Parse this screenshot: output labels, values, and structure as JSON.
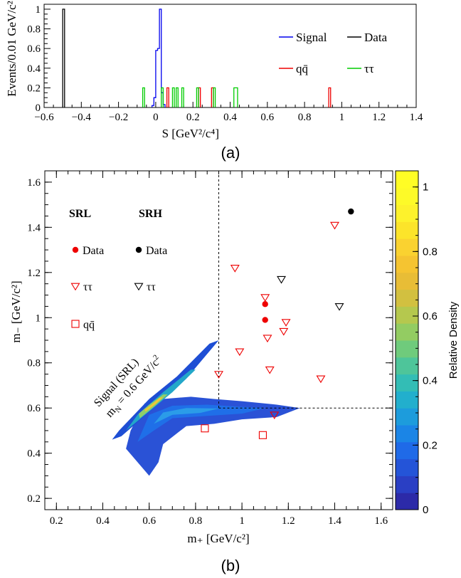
{
  "chart_data": [
    {
      "type": "histogram-step",
      "panel_label": "(a)",
      "xlabel": "S [GeV²/c⁴]",
      "ylabel": "Events/0.01 GeV/c²",
      "xlim": [
        -0.6,
        1.4
      ],
      "ylim": [
        0,
        1.05
      ],
      "x_ticks": [
        "−0.6",
        "−0.4",
        "−0.2",
        "0",
        "0.2",
        "0.4",
        "0.6",
        "0.8",
        "1",
        "1.2",
        "1.4"
      ],
      "y_ticks": [
        "0",
        "0.2",
        "0.4",
        "0.6",
        "0.8",
        "1"
      ],
      "bin_width": 0.01,
      "legend": [
        {
          "key": "signal",
          "label": "Signal",
          "color": "#0000ee"
        },
        {
          "key": "data",
          "label": "Data",
          "color": "#000000"
        },
        {
          "key": "qq",
          "label": "qq̄",
          "color": "#ee0000"
        },
        {
          "key": "tautau",
          "label": "ττ",
          "color": "#00cc00"
        }
      ],
      "series": [
        {
          "key": "signal",
          "color": "#0000ee",
          "bins": [
            [
              -0.02,
              0.02
            ],
            [
              -0.01,
              0.1
            ],
            [
              0.0,
              0.58
            ],
            [
              0.01,
              0.6
            ],
            [
              0.02,
              1.0
            ],
            [
              0.03,
              0.15
            ],
            [
              0.04,
              0.03
            ]
          ]
        },
        {
          "key": "data",
          "color": "#000000",
          "bins": [
            [
              -0.5,
              1.0
            ]
          ]
        },
        {
          "key": "qq",
          "color": "#ee0000",
          "bins": [
            [
              0.06,
              0.2
            ],
            [
              0.23,
              0.2
            ],
            [
              0.3,
              0.2
            ],
            [
              0.93,
              0.2
            ]
          ]
        },
        {
          "key": "tautau",
          "color": "#00cc00",
          "bins": [
            [
              -0.07,
              0.2
            ],
            [
              0.03,
              0.2
            ],
            [
              0.09,
              0.2
            ],
            [
              0.11,
              0.2
            ],
            [
              0.14,
              0.2
            ],
            [
              0.22,
              0.2
            ],
            [
              0.31,
              0.2
            ],
            [
              0.42,
              0.2
            ],
            [
              0.43,
              0.2
            ]
          ]
        }
      ]
    },
    {
      "type": "scatter-density",
      "panel_label": "(b)",
      "xlabel": "m₊ [GeV/c²]",
      "ylabel": "m₋ [GeV/c²]",
      "xlim": [
        0.15,
        1.65
      ],
      "ylim": [
        0.15,
        1.65
      ],
      "x_ticks": [
        "0.2",
        "0.4",
        "0.6",
        "0.8",
        "1",
        "1.2",
        "1.4",
        "1.6"
      ],
      "y_ticks": [
        "0.2",
        "0.4",
        "0.6",
        "0.8",
        "1",
        "1.2",
        "1.4",
        "1.6"
      ],
      "colorbar": {
        "label": "Relative Density",
        "range": [
          0,
          1.05
        ],
        "ticks": [
          "0",
          "0.2",
          "0.4",
          "0.6",
          "0.8",
          "1"
        ]
      },
      "boundaries": {
        "m_plus": 0.9,
        "m_minus": 0.6
      },
      "signal_annotation": {
        "line1": "Signal (SRL)",
        "line2": "m",
        "sub": "N",
        "line2b": " = 0.6 GeV/c",
        "sup": "2"
      },
      "legend": {
        "srl_title": "SRL",
        "srh_title": "SRH",
        "data_label": "Data",
        "tautau_label": "ττ",
        "qq_label": "qq̄"
      },
      "series": {
        "data_srl": {
          "color": "#ee0000",
          "points": [
            [
              1.1,
              1.06
            ],
            [
              1.1,
              0.99
            ]
          ]
        },
        "data_srh": {
          "color": "#000000",
          "points": [
            [
              1.47,
              1.47
            ]
          ]
        },
        "tautau_srl": {
          "color": "#ee0000",
          "points": [
            [
              0.9,
              0.75
            ],
            [
              0.97,
              1.22
            ],
            [
              0.99,
              0.85
            ],
            [
              1.1,
              1.09
            ],
            [
              1.11,
              0.91
            ],
            [
              1.12,
              0.77
            ],
            [
              1.18,
              0.94
            ],
            [
              1.19,
              0.98
            ],
            [
              1.4,
              1.41
            ],
            [
              1.34,
              0.73
            ],
            [
              1.14,
              0.57
            ]
          ]
        },
        "tautau_srh": {
          "color": "#000000",
          "points": [
            [
              1.17,
              1.17
            ],
            [
              1.42,
              1.05
            ]
          ]
        },
        "qq_srl": {
          "color": "#ee0000",
          "points": [
            [
              0.84,
              0.51
            ],
            [
              1.09,
              0.48
            ]
          ]
        }
      }
    }
  ]
}
